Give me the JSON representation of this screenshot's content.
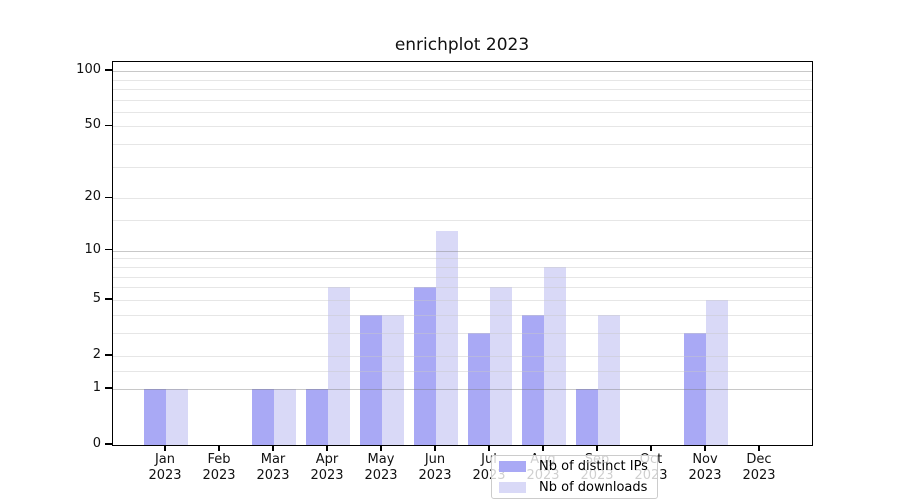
{
  "figure": {
    "title": "enrichplot 2023"
  },
  "chart_data": {
    "type": "bar",
    "title": "enrichplot 2023",
    "categories": [
      "Jan",
      "Feb",
      "Mar",
      "Apr",
      "May",
      "Jun",
      "Jul",
      "Aug",
      "Sep",
      "Oct",
      "Nov",
      "Dec"
    ],
    "category_year": "2023",
    "series": [
      {
        "name": "Nb of distinct IPs",
        "color": "#a9a9f5",
        "values": [
          1,
          0,
          1,
          1,
          4,
          6,
          3,
          4,
          1,
          0,
          3,
          0
        ]
      },
      {
        "name": "Nb of downloads",
        "color": "#d9d9f7",
        "values": [
          1,
          0,
          1,
          6,
          4,
          13,
          6,
          8,
          4,
          0,
          5,
          0
        ]
      }
    ],
    "xlabel": "",
    "ylabel": "",
    "yscale": "log1p",
    "ylim": [
      0,
      112
    ],
    "yticks": [
      0,
      1,
      2,
      5,
      10,
      20,
      50,
      100
    ],
    "yticks_decade_grid": [
      1,
      10,
      100
    ],
    "yticks_minor": [
      1.5,
      2,
      3,
      4,
      5,
      6,
      7,
      8,
      9,
      15,
      20,
      30,
      40,
      50,
      60,
      70,
      80,
      90
    ],
    "grid": true,
    "legend_position": "lower center inside"
  }
}
